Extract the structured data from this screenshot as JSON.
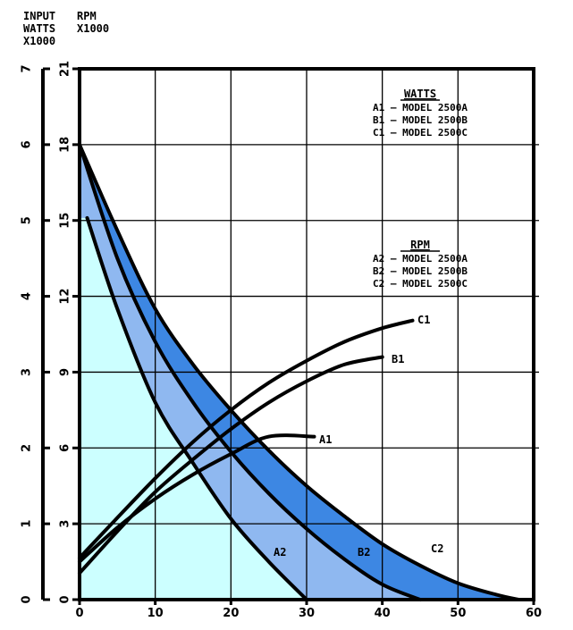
{
  "header": {
    "watts_axis_title": [
      "INPUT",
      "WATTS",
      "X1000"
    ],
    "rpm_axis_title": [
      "RPM",
      "X1000"
    ]
  },
  "chart_data": {
    "type": "line",
    "xlim": [
      0,
      60
    ],
    "x_ticks": [
      "0",
      "10",
      "20",
      "30",
      "40",
      "50",
      "60"
    ],
    "watts_axis": {
      "ylim": [
        0,
        7
      ],
      "ticks": [
        "0",
        "1",
        "2",
        "3",
        "4",
        "5",
        "6",
        "7"
      ]
    },
    "rpm_axis": {
      "ylim": [
        0,
        21
      ],
      "ticks": [
        "0",
        "3",
        "6",
        "9",
        "12",
        "15",
        "18",
        "21"
      ]
    },
    "grid": true,
    "legends": [
      {
        "title": "WATTS",
        "placement": "top-right",
        "entries": [
          "A1 — MODEL 2500A",
          "B1 — MODEL 2500B",
          "C1 — MODEL 2500C"
        ]
      },
      {
        "title": "RPM",
        "placement": "right",
        "entries": [
          "A2 — MODEL 2500A",
          "B2 — MODEL 2500B",
          "C2 — MODEL 2500C"
        ]
      }
    ],
    "colors": {
      "a2_fill": "#ccffff",
      "b2_fill": "#8fb8f0",
      "c2_fill": "#3d87e3",
      "line": "#000000"
    },
    "series": [
      {
        "name": "A1",
        "axis": "watts",
        "x": [
          0,
          5,
          10,
          15,
          20,
          25,
          31
        ],
        "values": [
          0.5,
          0.95,
          1.33,
          1.65,
          1.92,
          2.15,
          2.15
        ]
      },
      {
        "name": "B1",
        "axis": "watts",
        "x": [
          0,
          5,
          10,
          15,
          20,
          25,
          30,
          35,
          40
        ],
        "values": [
          0.35,
          0.9,
          1.42,
          1.85,
          2.25,
          2.6,
          2.88,
          3.1,
          3.2
        ]
      },
      {
        "name": "C1",
        "axis": "watts",
        "x": [
          0,
          5,
          10,
          15,
          20,
          25,
          30,
          35,
          40,
          44
        ],
        "values": [
          0.55,
          1.08,
          1.6,
          2.08,
          2.5,
          2.86,
          3.15,
          3.4,
          3.58,
          3.68
        ]
      },
      {
        "name": "A2",
        "axis": "rpm",
        "x": [
          1,
          5,
          10,
          15,
          20,
          25,
          30
        ],
        "values": [
          15.1,
          11.5,
          7.8,
          5.4,
          3.2,
          1.5,
          0
        ]
      },
      {
        "name": "B2",
        "axis": "rpm",
        "x": [
          0,
          5,
          10,
          15,
          20,
          25,
          30,
          35,
          40,
          45
        ],
        "values": [
          18.0,
          13.5,
          10.2,
          7.8,
          5.85,
          4.2,
          2.8,
          1.6,
          0.6,
          0
        ]
      },
      {
        "name": "C2",
        "axis": "rpm",
        "x": [
          0,
          5,
          10,
          15,
          20,
          25,
          30,
          35,
          40,
          45,
          50,
          55,
          58
        ],
        "values": [
          18.0,
          14.6,
          11.5,
          9.3,
          7.5,
          5.9,
          4.5,
          3.3,
          2.2,
          1.35,
          0.65,
          0.2,
          0
        ]
      }
    ],
    "labels": [
      "A1",
      "B1",
      "C1",
      "A2",
      "B2",
      "C2"
    ]
  }
}
